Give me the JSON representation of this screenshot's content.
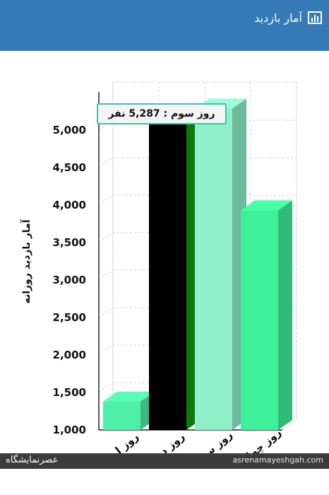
{
  "header": {
    "title": "آمار بازدید",
    "icon": "bar-chart-icon"
  },
  "tooltip": {
    "text": "روز سوم : 5,287 نفر"
  },
  "chart_data": {
    "type": "bar",
    "title": "",
    "xlabel": "",
    "ylabel": "آمار بازدید روزانه",
    "categories": [
      "روز اول",
      "روز دوم",
      "روز سوم",
      "روز چهارم"
    ],
    "values": [
      1380,
      5200,
      5287,
      3930
    ],
    "colors": [
      "#4ff0a8",
      "#000000",
      "#8eefc8",
      "#3ff09a"
    ],
    "ylim": [
      1000,
      5500
    ],
    "yticks": [
      1000,
      1500,
      2000,
      2500,
      3000,
      3500,
      4000,
      4500,
      5000
    ],
    "ytick_labels": [
      "1,000",
      "1,500",
      "2,000",
      "2,500",
      "3,000",
      "3,500",
      "4,000",
      "4,500",
      "5,000"
    ],
    "grid": true,
    "style": "3d"
  },
  "footer": {
    "logo": "عصرنمایشگاه",
    "site": "asrenamayeshgah.com"
  }
}
